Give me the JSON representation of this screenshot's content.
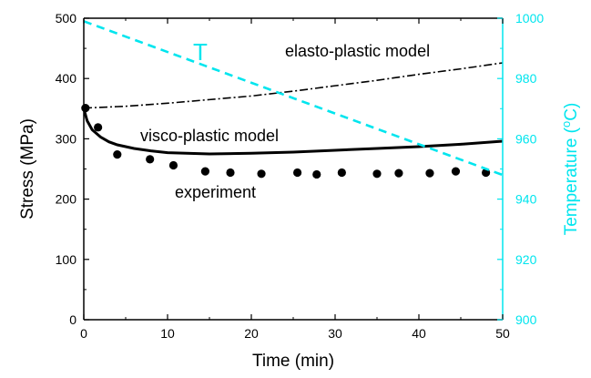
{
  "chart_data": {
    "type": "line",
    "xlabel": "Time (min)",
    "ylabel": "Stress (MPa)",
    "y2label": "Temperature (°C)",
    "xlim": [
      0,
      50
    ],
    "ylim": [
      0,
      500
    ],
    "y2lim": [
      900,
      1000
    ],
    "x_ticks": [
      0,
      10,
      20,
      30,
      40,
      50
    ],
    "y_ticks": [
      0,
      100,
      200,
      300,
      400,
      500
    ],
    "y2_ticks": [
      900,
      920,
      940,
      960,
      980,
      1000
    ],
    "grid": false,
    "colors": {
      "axis": "#000000",
      "temperature": "#00e5ee"
    },
    "series": [
      {
        "name": "experiment",
        "style": "markers",
        "x": [
          0.2,
          1.7,
          4,
          7.9,
          10.7,
          14.5,
          17.5,
          21.2,
          25.5,
          27.8,
          30.8,
          35,
          37.6,
          41.3,
          44.4,
          48
        ],
        "y": [
          351,
          319,
          274,
          266,
          256,
          246,
          244,
          242,
          244,
          241,
          244,
          242,
          243,
          243,
          246,
          244
        ]
      },
      {
        "name": "visco-plastic model",
        "style": "solid",
        "x": [
          0,
          0.4,
          1,
          2,
          3,
          4,
          6,
          8,
          10,
          15,
          20,
          25,
          30,
          35,
          40,
          45,
          50
        ],
        "y": [
          350,
          330,
          315,
          303,
          295,
          290,
          284,
          280,
          277,
          275,
          276,
          278,
          281,
          284,
          287,
          291,
          296
        ]
      },
      {
        "name": "elasto-plastic model",
        "style": "dashdot",
        "x": [
          0,
          5,
          10,
          15,
          20,
          25,
          30,
          35,
          40,
          45,
          50
        ],
        "y": [
          351,
          354,
          359,
          365,
          371,
          379,
          388,
          397,
          407,
          416,
          426
        ]
      },
      {
        "name": "T",
        "style": "dashed",
        "axis": "right",
        "x": [
          0,
          50
        ],
        "y": [
          999,
          948
        ]
      }
    ]
  }
}
